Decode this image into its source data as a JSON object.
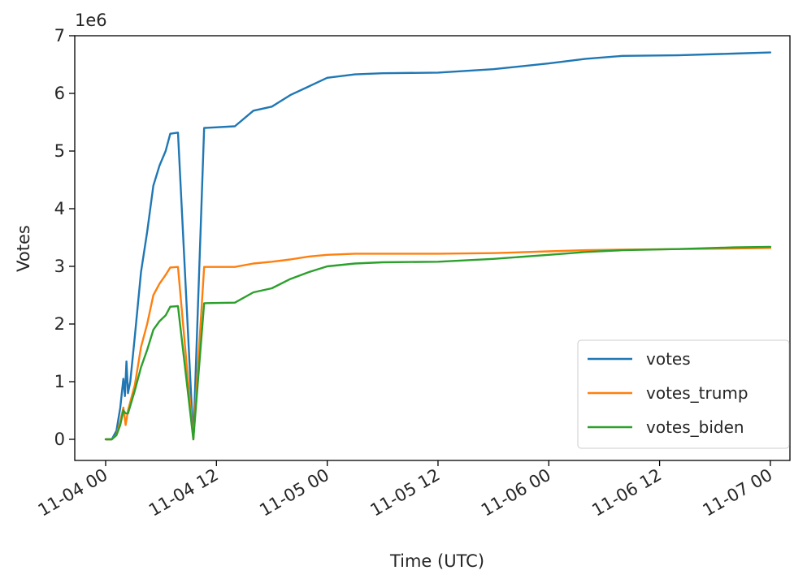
{
  "chart_data": {
    "type": "line",
    "title": "",
    "xlabel": "Time (UTC)",
    "ylabel": "Votes",
    "y_multiplier_label": "1e6",
    "ylim": [
      -0.3,
      7.0
    ],
    "xlim": [
      "2020-11-03T21:18",
      "2020-11-07T03:00"
    ],
    "x_ticks": [
      "2020-11-04T00:00",
      "2020-11-04T12:00",
      "2020-11-05T00:00",
      "2020-11-05T12:00",
      "2020-11-06T00:00",
      "2020-11-06T12:00",
      "2020-11-07T00:00"
    ],
    "x_tick_labels": [
      "11-04 00",
      "11-04 12",
      "11-05 00",
      "11-05 12",
      "11-06 00",
      "11-06 12",
      "11-07 00"
    ],
    "y_ticks": [
      0,
      1,
      2,
      3,
      4,
      5,
      6,
      7
    ],
    "y_tick_labels": [
      "0",
      "1",
      "2",
      "3",
      "4",
      "5",
      "6",
      "7"
    ],
    "legend_position": "lower right",
    "grid": false,
    "series": [
      {
        "name": "votes",
        "color": "#1f77b4",
        "points": [
          [
            "2020-11-04T00:00",
            0.0
          ],
          [
            "2020-11-04T00:40",
            0.0
          ],
          [
            "2020-11-04T01:10",
            0.15
          ],
          [
            "2020-11-04T01:35",
            0.55
          ],
          [
            "2020-11-04T01:55",
            1.05
          ],
          [
            "2020-11-04T02:05",
            0.75
          ],
          [
            "2020-11-04T02:15",
            1.35
          ],
          [
            "2020-11-04T02:25",
            0.8
          ],
          [
            "2020-11-04T02:40",
            1.0
          ],
          [
            "2020-11-04T03:10",
            1.8
          ],
          [
            "2020-11-04T03:50",
            2.9
          ],
          [
            "2020-11-04T04:30",
            3.6
          ],
          [
            "2020-11-04T05:10",
            4.4
          ],
          [
            "2020-11-04T05:50",
            4.75
          ],
          [
            "2020-11-04T06:30",
            5.0
          ],
          [
            "2020-11-04T07:00",
            5.3
          ],
          [
            "2020-11-04T07:50",
            5.32
          ],
          [
            "2020-11-04T09:30",
            0.0
          ],
          [
            "2020-11-04T10:40",
            5.4
          ],
          [
            "2020-11-04T14:00",
            5.43
          ],
          [
            "2020-11-04T16:00",
            5.7
          ],
          [
            "2020-11-04T18:00",
            5.77
          ],
          [
            "2020-11-04T20:00",
            5.97
          ],
          [
            "2020-11-04T22:00",
            6.12
          ],
          [
            "2020-11-05T00:00",
            6.27
          ],
          [
            "2020-11-05T03:00",
            6.33
          ],
          [
            "2020-11-05T06:00",
            6.35
          ],
          [
            "2020-11-05T12:00",
            6.36
          ],
          [
            "2020-11-05T18:00",
            6.42
          ],
          [
            "2020-11-06T00:00",
            6.52
          ],
          [
            "2020-11-06T04:00",
            6.6
          ],
          [
            "2020-11-06T08:00",
            6.65
          ],
          [
            "2020-11-06T14:00",
            6.66
          ],
          [
            "2020-11-06T20:00",
            6.69
          ],
          [
            "2020-11-07T00:00",
            6.71
          ]
        ]
      },
      {
        "name": "votes_trump",
        "color": "#ff7f0e",
        "points": [
          [
            "2020-11-04T00:00",
            0.0
          ],
          [
            "2020-11-04T00:40",
            0.0
          ],
          [
            "2020-11-04T01:10",
            0.08
          ],
          [
            "2020-11-04T01:35",
            0.3
          ],
          [
            "2020-11-04T01:55",
            0.55
          ],
          [
            "2020-11-04T02:10",
            0.25
          ],
          [
            "2020-11-04T02:25",
            0.5
          ],
          [
            "2020-11-04T03:10",
            0.95
          ],
          [
            "2020-11-04T03:50",
            1.6
          ],
          [
            "2020-11-04T04:30",
            2.0
          ],
          [
            "2020-11-04T05:10",
            2.5
          ],
          [
            "2020-11-04T05:50",
            2.7
          ],
          [
            "2020-11-04T06:30",
            2.85
          ],
          [
            "2020-11-04T07:00",
            2.98
          ],
          [
            "2020-11-04T07:50",
            2.99
          ],
          [
            "2020-11-04T09:30",
            0.0
          ],
          [
            "2020-11-04T10:40",
            2.99
          ],
          [
            "2020-11-04T14:00",
            2.99
          ],
          [
            "2020-11-04T16:00",
            3.05
          ],
          [
            "2020-11-04T18:00",
            3.08
          ],
          [
            "2020-11-04T20:00",
            3.12
          ],
          [
            "2020-11-04T22:00",
            3.17
          ],
          [
            "2020-11-05T00:00",
            3.2
          ],
          [
            "2020-11-05T03:00",
            3.22
          ],
          [
            "2020-11-05T06:00",
            3.22
          ],
          [
            "2020-11-05T12:00",
            3.22
          ],
          [
            "2020-11-05T18:00",
            3.23
          ],
          [
            "2020-11-06T00:00",
            3.26
          ],
          [
            "2020-11-06T04:00",
            3.28
          ],
          [
            "2020-11-06T08:00",
            3.29
          ],
          [
            "2020-11-06T14:00",
            3.3
          ],
          [
            "2020-11-06T20:00",
            3.31
          ],
          [
            "2020-11-07T00:00",
            3.32
          ]
        ]
      },
      {
        "name": "votes_biden",
        "color": "#2ca02c",
        "points": [
          [
            "2020-11-04T00:00",
            0.0
          ],
          [
            "2020-11-04T00:40",
            0.0
          ],
          [
            "2020-11-04T01:10",
            0.07
          ],
          [
            "2020-11-04T01:35",
            0.25
          ],
          [
            "2020-11-04T01:55",
            0.5
          ],
          [
            "2020-11-04T02:10",
            0.45
          ],
          [
            "2020-11-04T02:25",
            0.45
          ],
          [
            "2020-11-04T03:10",
            0.85
          ],
          [
            "2020-11-04T03:50",
            1.25
          ],
          [
            "2020-11-04T04:30",
            1.55
          ],
          [
            "2020-11-04T05:10",
            1.9
          ],
          [
            "2020-11-04T05:50",
            2.05
          ],
          [
            "2020-11-04T06:30",
            2.15
          ],
          [
            "2020-11-04T07:00",
            2.3
          ],
          [
            "2020-11-04T07:50",
            2.31
          ],
          [
            "2020-11-04T09:30",
            0.0
          ],
          [
            "2020-11-04T10:40",
            2.36
          ],
          [
            "2020-11-04T14:00",
            2.37
          ],
          [
            "2020-11-04T16:00",
            2.55
          ],
          [
            "2020-11-04T18:00",
            2.62
          ],
          [
            "2020-11-04T20:00",
            2.78
          ],
          [
            "2020-11-04T22:00",
            2.9
          ],
          [
            "2020-11-05T00:00",
            3.0
          ],
          [
            "2020-11-05T03:00",
            3.05
          ],
          [
            "2020-11-05T06:00",
            3.07
          ],
          [
            "2020-11-05T12:00",
            3.08
          ],
          [
            "2020-11-05T18:00",
            3.13
          ],
          [
            "2020-11-06T00:00",
            3.2
          ],
          [
            "2020-11-06T04:00",
            3.25
          ],
          [
            "2020-11-06T08:00",
            3.28
          ],
          [
            "2020-11-06T14:00",
            3.3
          ],
          [
            "2020-11-06T20:00",
            3.33
          ],
          [
            "2020-11-07T00:00",
            3.34
          ]
        ]
      }
    ]
  }
}
